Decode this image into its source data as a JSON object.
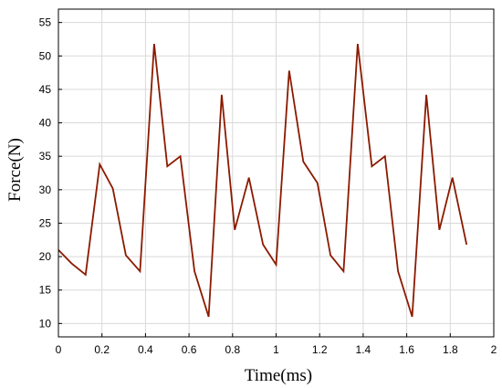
{
  "chart_data": {
    "type": "line",
    "title": "",
    "xlabel": "Time(ms)",
    "ylabel": "Force(N)",
    "xlim": [
      0,
      2
    ],
    "ylim": [
      8,
      57
    ],
    "grid": true,
    "x_ticks": [
      0,
      0.2,
      0.4,
      0.6,
      0.8,
      1,
      1.2,
      1.4,
      1.6,
      1.8,
      2
    ],
    "x_tick_labels": [
      "0",
      "0.2",
      "0.4",
      "0.6",
      "0.8",
      "1",
      "1.2",
      "1.4",
      "1.6",
      "1.8",
      "2"
    ],
    "y_ticks": [
      10,
      15,
      20,
      25,
      30,
      35,
      40,
      45,
      50,
      55
    ],
    "y_tick_labels": [
      "10",
      "15",
      "20",
      "25",
      "30",
      "35",
      "40",
      "45",
      "50",
      "55"
    ],
    "colors": {
      "line": "#8b1a00",
      "grid": "#d9d9d9",
      "axis": "#000000"
    },
    "series": [
      {
        "x": [
          0,
          0.06,
          0.125,
          0.19,
          0.25,
          0.31,
          0.375,
          0.44,
          0.5,
          0.56,
          0.625,
          0.69,
          0.75,
          0.81,
          0.875,
          0.94,
          1.0,
          1.06,
          1.125,
          1.19,
          1.25,
          1.31,
          1.375,
          1.44,
          1.5,
          1.56,
          1.625,
          1.69,
          1.75,
          1.81,
          1.875
        ],
        "y": [
          21,
          19,
          17.3,
          33.8,
          30.2,
          20.2,
          17.8,
          51.8,
          33.5,
          35,
          17.8,
          11,
          44.2,
          24,
          31.8,
          21.8,
          18.8,
          47.8,
          34.2,
          31,
          20.2,
          17.8,
          51.8,
          33.5,
          35,
          17.8,
          11,
          44.2,
          24,
          31.8,
          21.8
        ]
      }
    ]
  }
}
